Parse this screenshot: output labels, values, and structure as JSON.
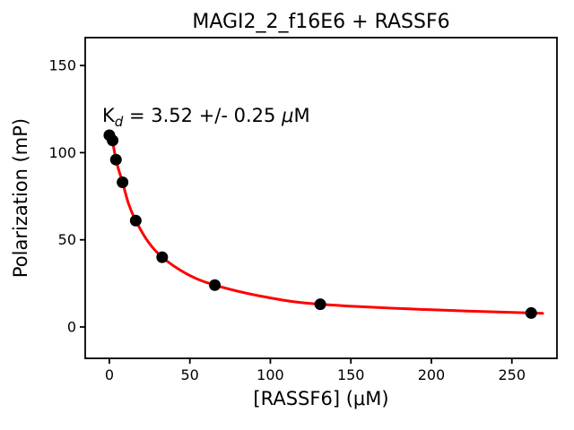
{
  "figure": {
    "background": "#ffffff"
  },
  "chart_data": {
    "type": "scatter",
    "title": "MAGI2_2_f16E6 + RASSF6",
    "xlabel": "[RASSF6] (μM)",
    "ylabel": "Polarization (mP)",
    "xlim": [
      -15,
      278
    ],
    "ylim": [
      -18,
      166
    ],
    "xticks": [
      0,
      50,
      100,
      150,
      200,
      250
    ],
    "yticks": [
      0,
      50,
      100,
      150
    ],
    "grid": false,
    "legend": "none",
    "annotation": {
      "text_plain": "Kd = 3.52 +/- 0.25 μM",
      "parts": [
        {
          "t": "K",
          "style": "plain"
        },
        {
          "t": "d",
          "style": "sub"
        },
        {
          "t": " = 3.52 +/- 0.25 ",
          "style": "plain"
        },
        {
          "t": "μ",
          "style": "italic"
        },
        {
          "t": "M",
          "style": "plain"
        }
      ]
    },
    "fit_params": {
      "kd_uM": 3.52,
      "kd_err_uM": 0.25
    },
    "series": [
      {
        "name": "measured-points",
        "type": "scatter",
        "color": "#000000",
        "x": [
          0,
          2.05,
          4.1,
          8.2,
          16.4,
          32.8,
          65.5,
          131,
          262
        ],
        "y": [
          110,
          107,
          96,
          83,
          61,
          40,
          24,
          13,
          8
        ]
      },
      {
        "name": "fit-curve",
        "type": "line",
        "color": "#ff0000",
        "x": [
          0,
          1,
          2.05,
          4.1,
          6,
          8.2,
          12,
          16.4,
          24,
          32.8,
          48,
          65.5,
          98,
          131,
          196,
          262,
          268
        ],
        "y": [
          110,
          108.5,
          106,
          96,
          89.5,
          83,
          70.5,
          61,
          49,
          40,
          30.5,
          24,
          17,
          13,
          10,
          8,
          7.9
        ]
      }
    ]
  }
}
